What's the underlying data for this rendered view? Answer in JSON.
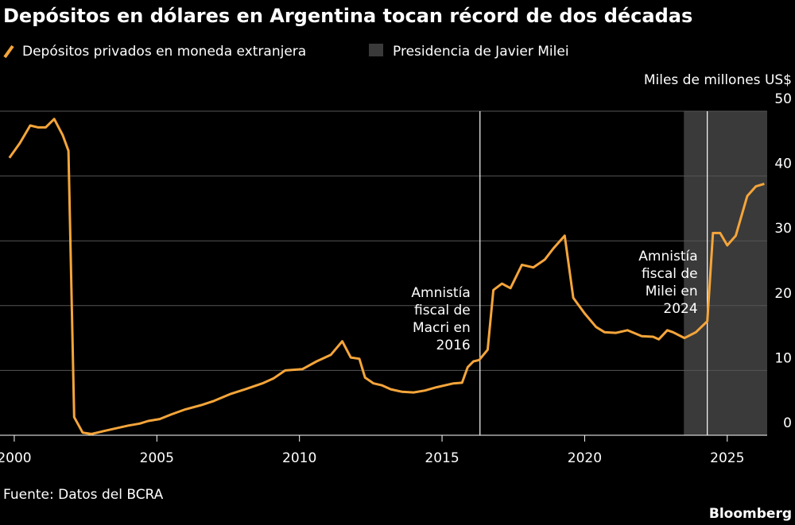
{
  "chart_data": {
    "type": "line",
    "title": "Depósitos en dólares en Argentina tocan récord de dos décadas",
    "y_label": "Miles de millones US$",
    "source": "Fuente: Datos del BCRA",
    "brand": "Bloomberg",
    "xlim": [
      1999.5,
      2026.4
    ],
    "xticks": [
      2000,
      2005,
      2010,
      2015,
      2020,
      2025
    ],
    "ylim": [
      0,
      50
    ],
    "yticks": [
      0,
      10,
      20,
      30,
      40,
      50
    ],
    "grid": true,
    "shade": {
      "name": "Presidencia de Javier Milei",
      "color": "#3a3a3a",
      "x": [
        2023.48,
        2026.4
      ]
    },
    "annotations": [
      {
        "x": 2016.33,
        "lines": [
          "Amnistía",
          "fiscal de",
          "Macri en",
          "2016"
        ]
      },
      {
        "x": 2024.3,
        "lines": [
          "Amnistía",
          "fiscal de",
          "Milei en",
          "2024"
        ]
      }
    ],
    "series": [
      {
        "name": "Depósitos privados en moneda extranjera",
        "color": "#f5a53a",
        "x": [
          1999.83,
          2000.2,
          2000.56,
          2000.84,
          2001.1,
          2001.4,
          2001.7,
          2001.9,
          2002.1,
          2002.4,
          2002.7,
          2003.1,
          2003.5,
          2004.0,
          2004.4,
          2004.7,
          2005.1,
          2005.5,
          2006.0,
          2006.6,
          2007.0,
          2007.6,
          2008.1,
          2008.7,
          2009.1,
          2009.5,
          2010.1,
          2010.6,
          2011.1,
          2011.5,
          2011.8,
          2012.1,
          2012.3,
          2012.6,
          2012.9,
          2013.2,
          2013.6,
          2014.0,
          2014.4,
          2014.8,
          2015.4,
          2015.7,
          2015.9,
          2016.1,
          2016.3,
          2016.6,
          2016.8,
          2017.1,
          2017.4,
          2017.8,
          2018.2,
          2018.6,
          2018.9,
          2019.3,
          2019.6,
          2020.0,
          2020.4,
          2020.7,
          2021.1,
          2021.5,
          2022.0,
          2022.4,
          2022.6,
          2022.9,
          2023.1,
          2023.5,
          2023.9,
          2024.3,
          2024.5,
          2024.75,
          2025.0,
          2025.3,
          2025.7,
          2026.0,
          2026.3
        ],
        "values": [
          42.8,
          45.1,
          47.8,
          47.5,
          47.5,
          48.8,
          46.3,
          43.9,
          2.8,
          0.4,
          0.2,
          0.6,
          1.0,
          1.5,
          1.8,
          2.2,
          2.5,
          3.2,
          4.0,
          4.7,
          5.3,
          6.4,
          7.1,
          8.0,
          8.8,
          10.0,
          10.2,
          11.4,
          12.4,
          14.5,
          12.0,
          11.8,
          8.9,
          8.0,
          7.7,
          7.1,
          6.7,
          6.6,
          6.9,
          7.4,
          8.0,
          8.1,
          10.5,
          11.4,
          11.6,
          13.2,
          22.4,
          23.4,
          22.7,
          26.3,
          25.9,
          27.1,
          28.8,
          30.8,
          21.2,
          18.8,
          16.7,
          15.9,
          15.8,
          16.2,
          15.3,
          15.2,
          14.8,
          16.2,
          15.9,
          15.0,
          15.9,
          17.6,
          31.2,
          31.2,
          29.3,
          30.8,
          36.9,
          38.4,
          38.8
        ]
      }
    ]
  }
}
